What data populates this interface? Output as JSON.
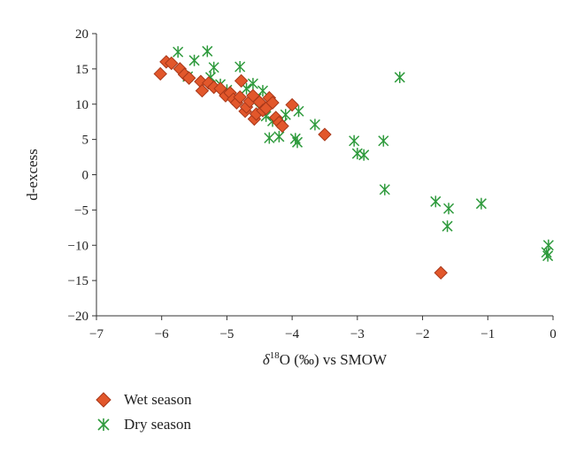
{
  "chart_data": {
    "type": "scatter",
    "title": "",
    "xlabel_prefix": "δ",
    "xlabel_sup": "18",
    "xlabel_rest": "O (‰) vs SMOW",
    "ylabel": "d-excess",
    "xlim": [
      -7,
      0
    ],
    "ylim": [
      -20,
      20
    ],
    "x_ticks": [
      -7,
      -6,
      -5,
      -4,
      -3,
      -2,
      -1,
      0
    ],
    "x_tick_labels": [
      "−7",
      "−6",
      "−5",
      "−4",
      "−3",
      "−2",
      "−1",
      "0"
    ],
    "y_ticks": [
      -20,
      -15,
      -10,
      -5,
      0,
      5,
      10,
      15,
      20
    ],
    "y_tick_labels": [
      "−20",
      "−15",
      "−10",
      "−5",
      "0",
      "5",
      "10",
      "15",
      "20"
    ],
    "grid": false,
    "legend_position": "bottom-left, below plot",
    "series": [
      {
        "name": "Wet season",
        "marker": "diamond",
        "color": "#e2572b",
        "stroke": "#a8381a",
        "points": [
          [
            -6.02,
            14.3
          ],
          [
            -5.93,
            16.0
          ],
          [
            -5.85,
            15.8
          ],
          [
            -5.72,
            15.0
          ],
          [
            -5.65,
            14.2
          ],
          [
            -5.58,
            13.7
          ],
          [
            -5.4,
            13.2
          ],
          [
            -5.38,
            11.9
          ],
          [
            -5.28,
            13.0
          ],
          [
            -5.2,
            12.4
          ],
          [
            -5.1,
            12.2
          ],
          [
            -5.02,
            11.2
          ],
          [
            -4.95,
            11.6
          ],
          [
            -4.9,
            10.7
          ],
          [
            -4.85,
            10.2
          ],
          [
            -4.8,
            11.0
          ],
          [
            -4.78,
            13.3
          ],
          [
            -4.72,
            9.0
          ],
          [
            -4.7,
            9.6
          ],
          [
            -4.65,
            10.4
          ],
          [
            -4.6,
            11.2
          ],
          [
            -4.58,
            7.9
          ],
          [
            -4.55,
            8.6
          ],
          [
            -4.5,
            10.3
          ],
          [
            -4.45,
            9.1
          ],
          [
            -4.4,
            9.4
          ],
          [
            -4.35,
            10.9
          ],
          [
            -4.3,
            10.2
          ],
          [
            -4.25,
            8.1
          ],
          [
            -4.2,
            7.4
          ],
          [
            -4.15,
            6.9
          ],
          [
            -4.0,
            9.9
          ],
          [
            -3.5,
            5.7
          ],
          [
            -1.72,
            -13.9
          ]
        ]
      },
      {
        "name": "Dry season",
        "marker": "asterisk",
        "color": "#2e9a3c",
        "points": [
          [
            -5.75,
            17.4
          ],
          [
            -5.5,
            16.2
          ],
          [
            -5.3,
            17.5
          ],
          [
            -5.2,
            15.2
          ],
          [
            -5.25,
            13.8
          ],
          [
            -5.6,
            13.9
          ],
          [
            -5.1,
            12.8
          ],
          [
            -5.0,
            12.0
          ],
          [
            -4.85,
            10.6
          ],
          [
            -4.8,
            15.3
          ],
          [
            -4.7,
            12.2
          ],
          [
            -4.6,
            12.9
          ],
          [
            -4.55,
            10.8
          ],
          [
            -4.5,
            9.4
          ],
          [
            -4.45,
            11.9
          ],
          [
            -4.4,
            8.3
          ],
          [
            -4.35,
            5.2
          ],
          [
            -4.3,
            7.6
          ],
          [
            -4.2,
            5.4
          ],
          [
            -4.15,
            7.3
          ],
          [
            -4.1,
            8.5
          ],
          [
            -3.95,
            5.1
          ],
          [
            -3.92,
            4.6
          ],
          [
            -3.9,
            9.0
          ],
          [
            -3.65,
            7.1
          ],
          [
            -3.05,
            4.8
          ],
          [
            -3.0,
            3.0
          ],
          [
            -2.9,
            2.8
          ],
          [
            -2.6,
            4.8
          ],
          [
            -2.58,
            -2.1
          ],
          [
            -2.35,
            13.8
          ],
          [
            -1.8,
            -3.8
          ],
          [
            -1.62,
            -7.3
          ],
          [
            -1.6,
            -4.8
          ],
          [
            -1.1,
            -4.1
          ],
          [
            -0.07,
            -10.0
          ],
          [
            -0.1,
            -11.0
          ],
          [
            -0.08,
            -11.5
          ]
        ]
      }
    ]
  }
}
